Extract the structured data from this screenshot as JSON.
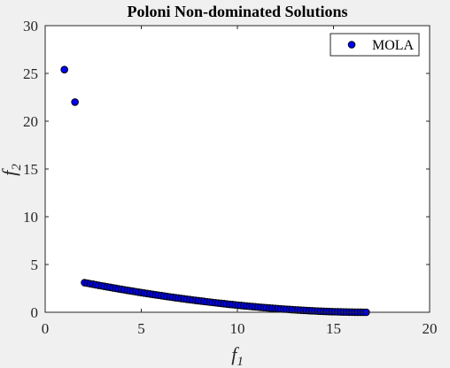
{
  "chart_data": {
    "type": "scatter",
    "title": "Poloni Non-dominated Solutions",
    "xlabel": {
      "base": "f",
      "sub": "1"
    },
    "ylabel": {
      "base": "f",
      "sub": "2"
    },
    "xlim": [
      0,
      20
    ],
    "ylim": [
      0,
      30
    ],
    "xticks": [
      "0",
      "5",
      "10",
      "15",
      "20"
    ],
    "yticks": [
      "0",
      "5",
      "10",
      "15",
      "20",
      "25",
      "30"
    ],
    "grid": false,
    "legend_position": "top-right",
    "series": [
      {
        "name": "MOLA",
        "marker_color": "#0000ff",
        "marker_edge": "#000000",
        "outliers": [
          [
            1.0,
            25.4
          ],
          [
            1.55,
            22.0
          ]
        ],
        "curve": {
          "x_start": 2.05,
          "x_end": 16.7,
          "count": 100,
          "y_start": 3.1,
          "y_end": 0.0,
          "shape_exponent": 0.55
        }
      }
    ]
  }
}
